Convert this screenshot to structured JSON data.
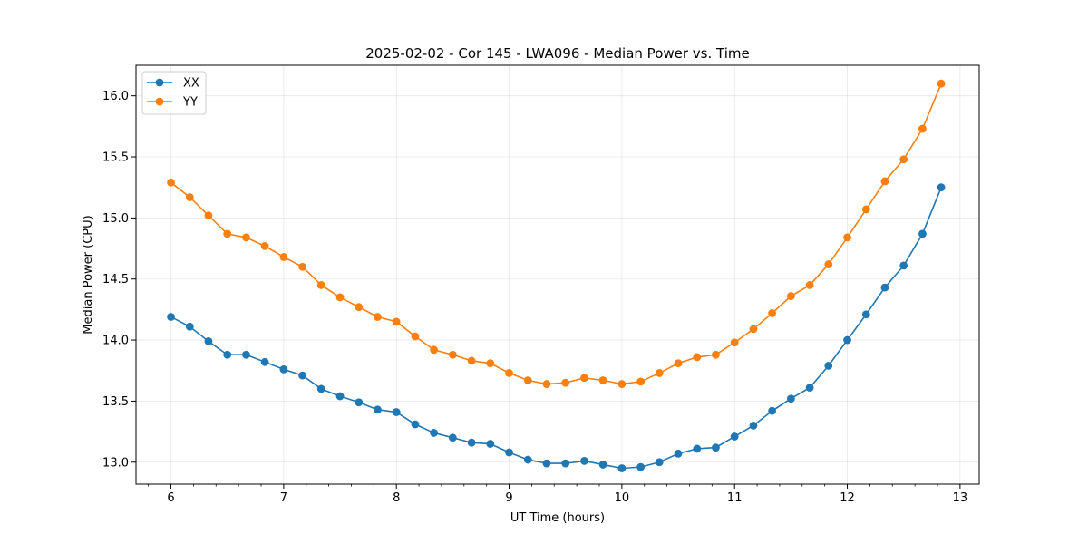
{
  "chart_data": {
    "type": "line",
    "title": "2025-02-02 - Cor 145 - LWA096 - Median Power vs. Time",
    "xlabel": "UT Time (hours)",
    "ylabel": "Median Power (CPU)",
    "xlim": [
      5.69,
      13.17
    ],
    "ylim": [
      12.82,
      16.25
    ],
    "xticks": [
      6,
      7,
      8,
      9,
      10,
      11,
      12,
      13
    ],
    "xtick_labels": [
      "6",
      "7",
      "8",
      "9",
      "10",
      "11",
      "12",
      "13"
    ],
    "yticks": [
      13.0,
      13.5,
      14.0,
      14.5,
      15.0,
      15.5,
      16.0
    ],
    "ytick_labels": [
      "13.0",
      "13.5",
      "14.0",
      "14.5",
      "15.0",
      "15.5",
      "16.0"
    ],
    "grid": true,
    "legend_position": "top-left",
    "x": [
      6.0,
      6.167,
      6.333,
      6.5,
      6.667,
      6.833,
      7.0,
      7.167,
      7.333,
      7.5,
      7.667,
      7.833,
      8.0,
      8.167,
      8.333,
      8.5,
      8.667,
      8.833,
      9.0,
      9.167,
      9.333,
      9.5,
      9.667,
      9.833,
      10.0,
      10.167,
      10.333,
      10.5,
      10.667,
      10.833,
      11.0,
      11.167,
      11.333,
      11.5,
      11.667,
      11.833,
      12.0,
      12.167,
      12.333,
      12.5,
      12.667,
      12.833
    ],
    "series": [
      {
        "name": "XX",
        "color": "#1f77b4",
        "values": [
          14.19,
          14.11,
          13.99,
          13.88,
          13.88,
          13.82,
          13.76,
          13.71,
          13.6,
          13.54,
          13.49,
          13.43,
          13.41,
          13.31,
          13.24,
          13.2,
          13.16,
          13.15,
          13.08,
          13.02,
          12.99,
          12.99,
          13.01,
          12.98,
          12.95,
          12.96,
          13.0,
          13.07,
          13.11,
          13.12,
          13.21,
          13.3,
          13.42,
          13.52,
          13.61,
          13.79,
          14.0,
          14.21,
          14.43,
          14.61,
          14.87,
          15.25
        ]
      },
      {
        "name": "YY",
        "color": "#ff7f0e",
        "values": [
          15.29,
          15.17,
          15.02,
          14.87,
          14.84,
          14.77,
          14.68,
          14.6,
          14.45,
          14.35,
          14.27,
          14.19,
          14.15,
          14.03,
          13.92,
          13.88,
          13.83,
          13.81,
          13.73,
          13.67,
          13.64,
          13.65,
          13.69,
          13.67,
          13.64,
          13.66,
          13.73,
          13.81,
          13.86,
          13.88,
          13.98,
          14.09,
          14.22,
          14.36,
          14.45,
          14.62,
          14.84,
          15.07,
          15.3,
          15.48,
          15.73,
          16.1
        ]
      }
    ]
  }
}
